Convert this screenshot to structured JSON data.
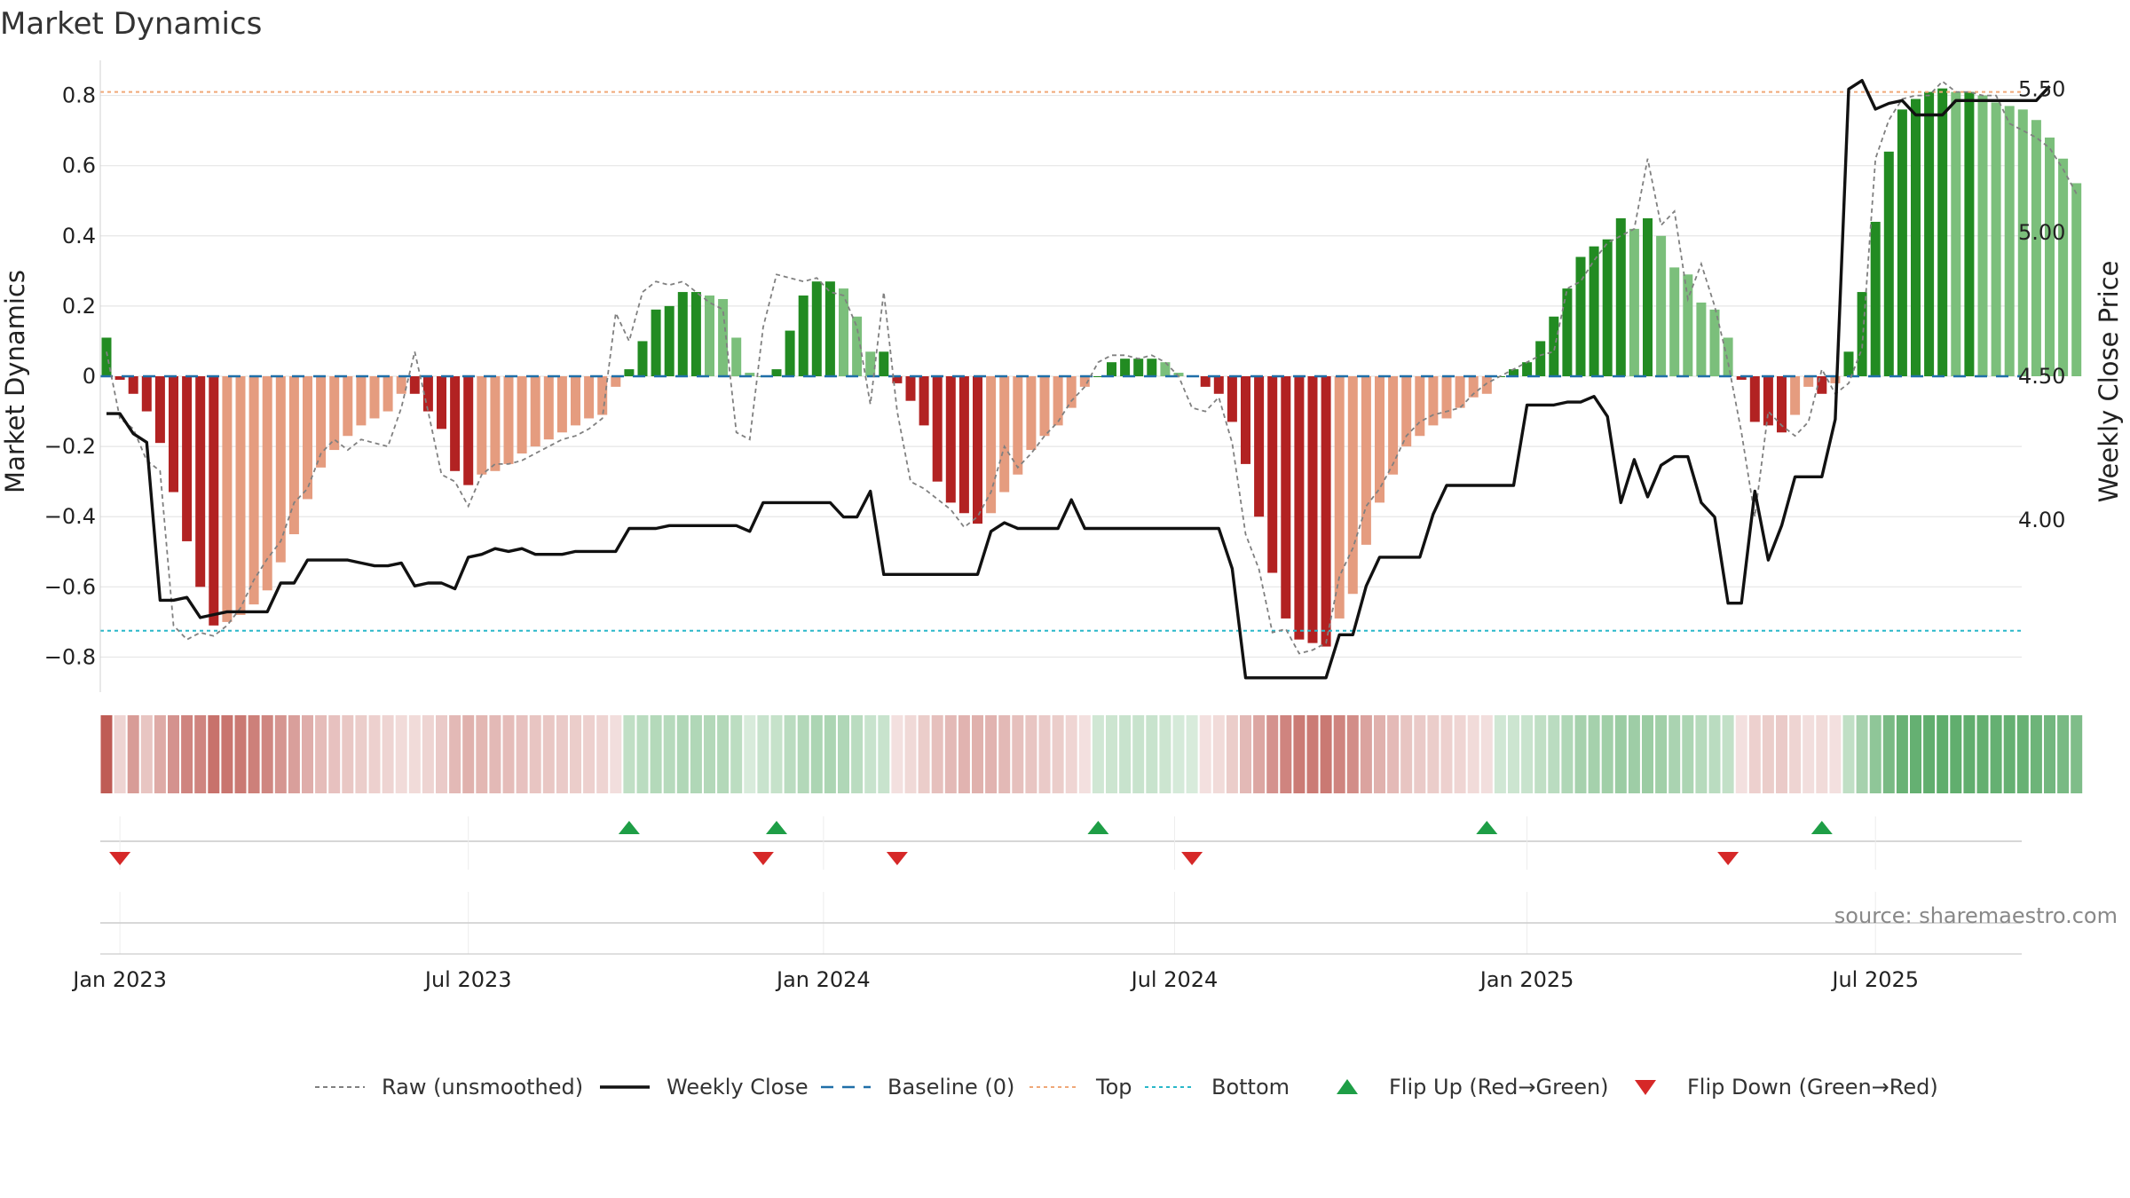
{
  "title": "Market Dynamics",
  "source": "source: sharemaestro.com",
  "colors": {
    "strong_green": "#228b22",
    "light_green": "#7bbf7b",
    "strong_red": "#b22222",
    "light_red": "#e59c7f",
    "close": "#111111",
    "raw": "#808080",
    "baseline": "#1f6fa8",
    "top": "#f0a878",
    "bottom": "#29b7c9",
    "flip_up": "#1e9e46",
    "flip_down": "#d62828"
  },
  "chart_data": {
    "type": "bar",
    "title": "Market Dynamics",
    "ylabel": "Market Dynamics",
    "ylabel_right": "Weekly Close Price",
    "ylim": [
      -0.9,
      0.9
    ],
    "ylim_right": [
      3.4,
      5.6
    ],
    "yticks": [
      {
        "v": 0.8,
        "label": "0.8"
      },
      {
        "v": 0.6,
        "label": "0.6"
      },
      {
        "v": 0.4,
        "label": "0.4"
      },
      {
        "v": 0.2,
        "label": "0.2"
      },
      {
        "v": 0,
        "label": "0"
      },
      {
        "v": -0.2,
        "label": "−0.2"
      },
      {
        "v": -0.4,
        "label": "−0.4"
      },
      {
        "v": -0.6,
        "label": "−0.6"
      },
      {
        "v": -0.8,
        "label": "−0.8"
      }
    ],
    "yticks_right": [
      {
        "v": 5.5,
        "label": "5.50"
      },
      {
        "v": 5.0,
        "label": "5.00"
      },
      {
        "v": 4.5,
        "label": "4.50"
      },
      {
        "v": 4.0,
        "label": "4.00"
      }
    ],
    "xticks": [
      {
        "w": 1,
        "label": "Jan 2023"
      },
      {
        "w": 27,
        "label": "Jul 2023"
      },
      {
        "w": 53.5,
        "label": "Jan 2024"
      },
      {
        "w": 79.7,
        "label": "Jul 2024"
      },
      {
        "w": 106,
        "label": "Jan 2025"
      },
      {
        "w": 132,
        "label": "Jul 2025"
      }
    ],
    "top": 0.81,
    "bottom": -0.725,
    "baseline": 0,
    "values": [
      0.11,
      -0.01,
      -0.05,
      -0.1,
      -0.19,
      -0.33,
      -0.47,
      -0.6,
      -0.71,
      -0.7,
      -0.68,
      -0.65,
      -0.61,
      -0.53,
      -0.45,
      -0.35,
      -0.26,
      -0.21,
      -0.17,
      -0.14,
      -0.12,
      -0.1,
      -0.05,
      -0.05,
      -0.1,
      -0.15,
      -0.27,
      -0.31,
      -0.28,
      -0.27,
      -0.25,
      -0.22,
      -0.2,
      -0.18,
      -0.16,
      -0.14,
      -0.12,
      -0.11,
      -0.03,
      0.02,
      0.1,
      0.19,
      0.2,
      0.24,
      0.24,
      0.23,
      0.22,
      0.11,
      0.01,
      0.0,
      0.02,
      0.13,
      0.23,
      0.27,
      0.27,
      0.25,
      0.17,
      0.07,
      0.07,
      -0.02,
      -0.07,
      -0.14,
      -0.3,
      -0.36,
      -0.39,
      -0.42,
      -0.39,
      -0.33,
      -0.28,
      -0.21,
      -0.17,
      -0.14,
      -0.09,
      -0.03,
      0.0,
      0.04,
      0.05,
      0.05,
      0.05,
      0.04,
      0.01,
      0.0,
      -0.03,
      -0.05,
      -0.13,
      -0.25,
      -0.4,
      -0.56,
      -0.69,
      -0.75,
      -0.76,
      -0.77,
      -0.69,
      -0.62,
      -0.48,
      -0.36,
      -0.28,
      -0.2,
      -0.17,
      -0.14,
      -0.12,
      -0.09,
      -0.06,
      -0.05,
      0.0,
      0.02,
      0.04,
      0.1,
      0.17,
      0.25,
      0.34,
      0.37,
      0.39,
      0.45,
      0.42,
      0.45,
      0.4,
      0.31,
      0.29,
      0.21,
      0.19,
      0.11,
      -0.01,
      -0.13,
      -0.14,
      -0.16,
      -0.11,
      -0.03,
      -0.05,
      -0.02,
      0.07,
      0.24,
      0.44,
      0.64,
      0.76,
      0.79,
      0.81,
      0.82,
      0.81,
      0.81,
      0.8,
      0.78,
      0.77,
      0.76,
      0.73,
      0.68,
      0.62,
      0.55
    ],
    "series": [
      {
        "name": "Raw (unsmoothed)",
        "values": [
          0.07,
          -0.12,
          -0.15,
          -0.24,
          -0.27,
          -0.71,
          -0.75,
          -0.73,
          -0.74,
          -0.71,
          -0.66,
          -0.58,
          -0.52,
          -0.47,
          -0.36,
          -0.32,
          -0.22,
          -0.18,
          -0.21,
          -0.18,
          -0.19,
          -0.2,
          -0.09,
          0.07,
          -0.1,
          -0.28,
          -0.3,
          -0.37,
          -0.28,
          -0.25,
          -0.25,
          -0.24,
          -0.22,
          -0.2,
          -0.18,
          -0.17,
          -0.15,
          -0.12,
          0.18,
          0.1,
          0.24,
          0.27,
          0.26,
          0.27,
          0.24,
          0.21,
          0.19,
          -0.16,
          -0.18,
          0.14,
          0.29,
          0.28,
          0.27,
          0.28,
          0.24,
          0.23,
          0.14,
          -0.08,
          0.24,
          -0.1,
          -0.3,
          -0.32,
          -0.35,
          -0.38,
          -0.43,
          -0.4,
          -0.33,
          -0.2,
          -0.26,
          -0.22,
          -0.17,
          -0.13,
          -0.07,
          -0.03,
          0.04,
          0.06,
          0.06,
          0.05,
          0.06,
          0.04,
          0.0,
          -0.09,
          -0.1,
          -0.06,
          -0.19,
          -0.45,
          -0.55,
          -0.73,
          -0.72,
          -0.79,
          -0.78,
          -0.76,
          -0.57,
          -0.49,
          -0.37,
          -0.32,
          -0.25,
          -0.17,
          -0.13,
          -0.11,
          -0.1,
          -0.09,
          -0.05,
          -0.02,
          0.0,
          0.02,
          0.04,
          0.06,
          0.07,
          0.25,
          0.27,
          0.33,
          0.38,
          0.4,
          0.42,
          0.62,
          0.43,
          0.47,
          0.22,
          0.32,
          0.2,
          0.04,
          -0.16,
          -0.4,
          -0.1,
          -0.14,
          -0.17,
          -0.13,
          0.02,
          -0.05,
          -0.02,
          0.08,
          0.62,
          0.73,
          0.79,
          0.8,
          0.8,
          0.84,
          0.81,
          0.81,
          0.8,
          0.8,
          0.72,
          0.7,
          0.68,
          0.65,
          0.59,
          0.52
        ]
      },
      {
        "name": "Weekly Close",
        "values": [
          4.37,
          4.37,
          4.3,
          4.27,
          3.72,
          3.72,
          3.73,
          3.66,
          3.67,
          3.68,
          3.68,
          3.68,
          3.68,
          3.78,
          3.78,
          3.86,
          3.86,
          3.86,
          3.86,
          3.85,
          3.84,
          3.84,
          3.85,
          3.77,
          3.78,
          3.78,
          3.76,
          3.87,
          3.88,
          3.9,
          3.89,
          3.9,
          3.88,
          3.88,
          3.88,
          3.89,
          3.89,
          3.89,
          3.89,
          3.97,
          3.97,
          3.97,
          3.98,
          3.98,
          3.98,
          3.98,
          3.98,
          3.98,
          3.96,
          4.06,
          4.06,
          4.06,
          4.06,
          4.06,
          4.06,
          4.01,
          4.01,
          4.1,
          3.81,
          3.81,
          3.81,
          3.81,
          3.81,
          3.81,
          3.81,
          3.81,
          3.96,
          3.99,
          3.97,
          3.97,
          3.97,
          3.97,
          4.07,
          3.97,
          3.97,
          3.97,
          3.97,
          3.97,
          3.97,
          3.97,
          3.97,
          3.97,
          3.97,
          3.97,
          3.83,
          3.45,
          3.45,
          3.45,
          3.45,
          3.45,
          3.45,
          3.45,
          3.6,
          3.6,
          3.77,
          3.87,
          3.87,
          3.87,
          3.87,
          4.02,
          4.12,
          4.12,
          4.12,
          4.12,
          4.12,
          4.12,
          4.4,
          4.4,
          4.4,
          4.41,
          4.41,
          4.43,
          4.36,
          4.06,
          4.21,
          4.08,
          4.19,
          4.22,
          4.22,
          4.06,
          4.01,
          3.71,
          3.71,
          4.1,
          3.86,
          3.98,
          4.15,
          4.15,
          4.15,
          4.35,
          5.5,
          5.53,
          5.43,
          5.45,
          5.46,
          5.41,
          5.41,
          5.41,
          5.46,
          5.46,
          5.46,
          5.46,
          5.46,
          5.46,
          5.46,
          5.51
        ]
      }
    ],
    "heat_strip": [
      -1.0,
      -0.15,
      -0.55,
      -0.25,
      -0.45,
      -0.62,
      -0.72,
      -0.72,
      -0.85,
      -0.82,
      -0.8,
      -0.75,
      -0.7,
      -0.6,
      -0.52,
      -0.42,
      -0.32,
      -0.28,
      -0.24,
      -0.2,
      -0.18,
      -0.16,
      -0.1,
      -0.1,
      -0.15,
      -0.22,
      -0.35,
      -0.4,
      -0.36,
      -0.34,
      -0.32,
      -0.28,
      -0.26,
      -0.24,
      -0.22,
      -0.2,
      -0.18,
      -0.16,
      -0.08,
      0.25,
      0.3,
      0.33,
      0.32,
      0.36,
      0.36,
      0.35,
      0.34,
      0.28,
      0.1,
      0.2,
      0.22,
      0.3,
      0.34,
      0.38,
      0.38,
      0.36,
      0.3,
      0.2,
      0.2,
      -0.06,
      -0.12,
      -0.2,
      -0.3,
      -0.35,
      -0.38,
      -0.4,
      -0.38,
      -0.34,
      -0.3,
      -0.25,
      -0.22,
      -0.2,
      -0.14,
      -0.06,
      0.15,
      0.18,
      0.2,
      0.2,
      0.2,
      0.18,
      0.12,
      0.1,
      -0.06,
      -0.1,
      -0.2,
      -0.34,
      -0.48,
      -0.62,
      -0.72,
      -0.78,
      -0.78,
      -0.8,
      -0.72,
      -0.65,
      -0.5,
      -0.4,
      -0.33,
      -0.26,
      -0.22,
      -0.2,
      -0.18,
      -0.14,
      -0.1,
      -0.08,
      0.15,
      0.18,
      0.2,
      0.25,
      0.3,
      0.36,
      0.42,
      0.44,
      0.46,
      0.5,
      0.48,
      0.5,
      0.46,
      0.4,
      0.38,
      0.32,
      0.3,
      0.24,
      -0.06,
      -0.18,
      -0.2,
      -0.22,
      -0.16,
      -0.08,
      -0.1,
      -0.06,
      0.25,
      0.42,
      0.58,
      0.72,
      0.82,
      0.85,
      0.87,
      0.88,
      0.87,
      0.87,
      0.86,
      0.85,
      0.84,
      0.83,
      0.8,
      0.76,
      0.72,
      0.68
    ],
    "flip_up_weeks": [
      39,
      50,
      74,
      103,
      128
    ],
    "flip_down_weeks": [
      1,
      49,
      59,
      81,
      121
    ],
    "legend": [
      {
        "kind": "raw",
        "label": "Raw (unsmoothed)"
      },
      {
        "kind": "close",
        "label": "Weekly Close"
      },
      {
        "kind": "baseline",
        "label": "Baseline (0)"
      },
      {
        "kind": "top",
        "label": "Top"
      },
      {
        "kind": "bottom",
        "label": "Bottom"
      },
      {
        "kind": "flipup",
        "label": "Flip Up (Red→Green)"
      },
      {
        "kind": "flipdown",
        "label": "Flip Down (Green→Red)"
      }
    ]
  }
}
